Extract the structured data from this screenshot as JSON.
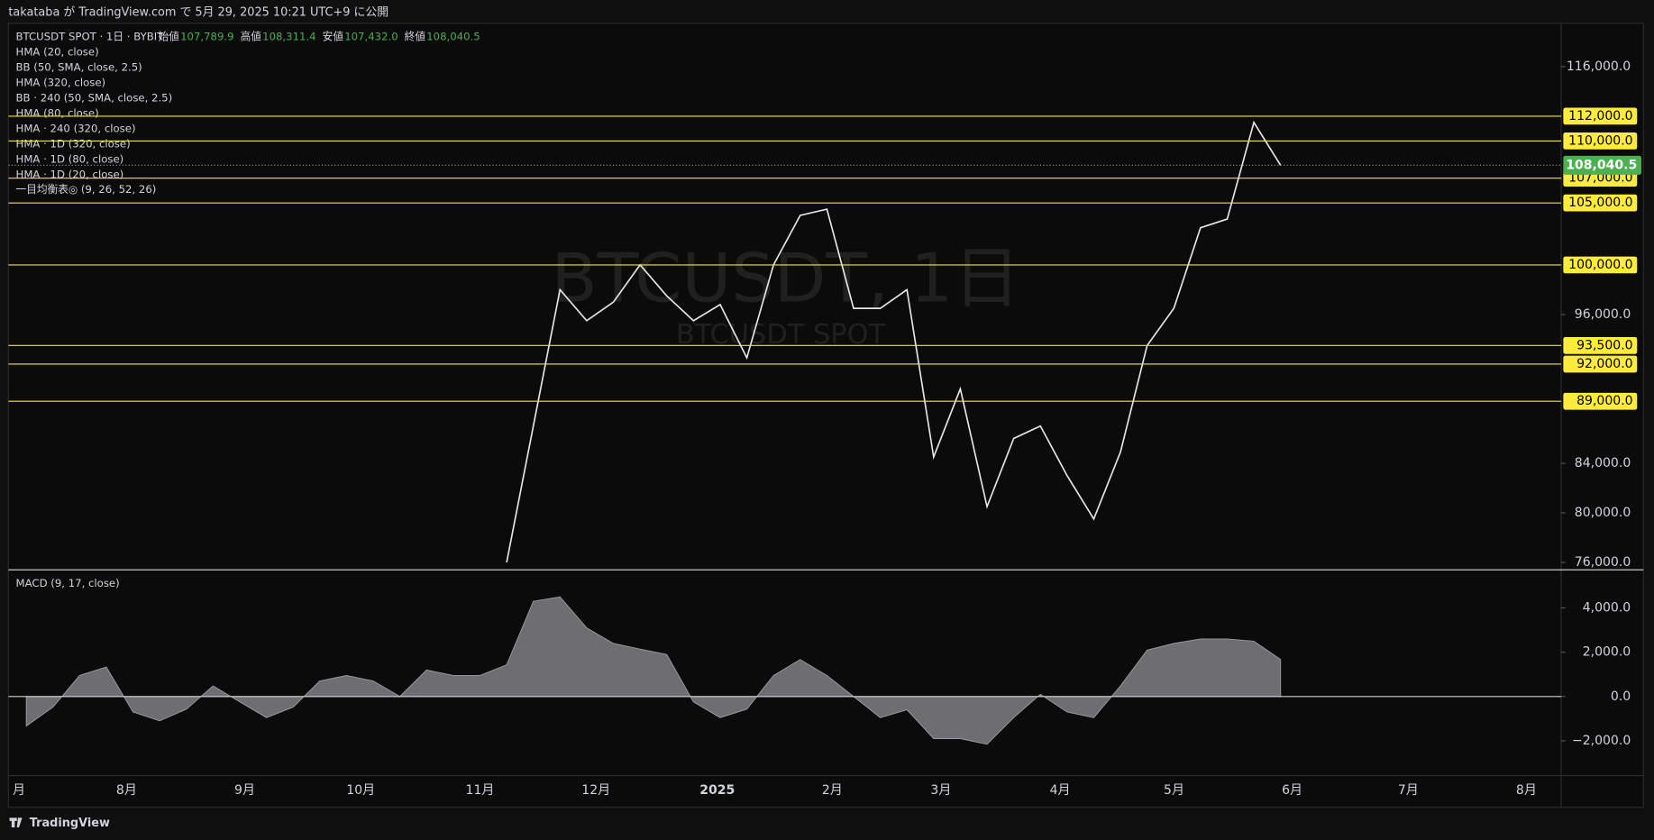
{
  "header": {
    "publish": "takataba が TradingView.com で 5月 29, 2025 10:21 UTC+9 に公開"
  },
  "legend": {
    "symbol": "BTCUSDT SPOT · 1日 · BYBIT",
    "ohlc": [
      {
        "label": "始値",
        "value": "107,789.9"
      },
      {
        "label": "高値",
        "value": "108,311.4"
      },
      {
        "label": "安値",
        "value": "107,432.0"
      },
      {
        "label": "終値",
        "value": "108,040.5"
      }
    ],
    "indicators": [
      "HMA (20, close)",
      "BB (50, SMA, close, 2.5)",
      "HMA (320, close)",
      "BB · 240 (50, SMA, close, 2.5)",
      "HMA (80, close)",
      "HMA · 240 (320, close)",
      "HMA · 1D (320, close)",
      "HMA · 1D (80, close)",
      "HMA · 1D (20, close)",
      "一目均衡表◎ (9, 26, 52, 26)"
    ]
  },
  "watermark": {
    "symbol": "BTCUSDT, 1日",
    "sub": "BTCUSDT SPOT"
  },
  "price": {
    "ylim": [
      75400,
      119500
    ],
    "yticks": [
      {
        "value": 116000,
        "label": "116,000.0"
      },
      {
        "value": 96000,
        "label": "96,000.0"
      },
      {
        "value": 84000,
        "label": "84,000.0"
      },
      {
        "value": 80000,
        "label": "80,000.0"
      },
      {
        "value": 76000,
        "label": "76,000.0"
      }
    ],
    "levels": [
      {
        "value": 112000,
        "label": "112,000.0"
      },
      {
        "value": 110000,
        "label": "110,000.0"
      },
      {
        "value": 107000,
        "label": "107,000.0"
      },
      {
        "value": 105000,
        "label": "105,000.0"
      },
      {
        "value": 100000,
        "label": "100,000.0"
      },
      {
        "value": 93500,
        "label": "93,500.0"
      },
      {
        "value": 92000,
        "label": "92,000.0"
      },
      {
        "value": 89000,
        "label": "89,000.0"
      }
    ],
    "last_price": {
      "value": 108040.5,
      "label": "108,040.5"
    },
    "close": [
      76000,
      87000,
      98000,
      95500,
      97000,
      100000,
      97500,
      95500,
      96800,
      92500,
      100000,
      104000,
      104500,
      96500,
      96500,
      98000,
      84500,
      90000,
      80500,
      86000,
      87000,
      83000,
      79500,
      84900,
      93500,
      96500,
      103000,
      103700,
      111500,
      108040.5
    ]
  },
  "macd": {
    "title": "MACD (9, 17, close)",
    "ylim": [
      -3570,
      5670
    ],
    "yticks": [
      {
        "value": 4000,
        "label": "4,000.0"
      },
      {
        "value": 2000,
        "label": "2,000.0"
      },
      {
        "value": 0,
        "label": "0.0"
      },
      {
        "value": -2000,
        "label": "−2,000.0"
      }
    ],
    "values": [
      -1330,
      -480,
      950,
      1330,
      -700,
      -1100,
      -570,
      480,
      -240,
      -950,
      -480,
      700,
      950,
      700,
      0,
      1200,
      950,
      950,
      1430,
      4300,
      4500,
      3100,
      2400,
      2140,
      1900,
      -240,
      -950,
      -570,
      950,
      1670,
      950,
      0,
      -950,
      -600,
      -1900,
      -1900,
      -2150,
      -950,
      100,
      -700,
      -950,
      480,
      2100,
      2400,
      2600,
      2600,
      2500,
      1670
    ]
  },
  "time_axis": {
    "labels": [
      "月",
      "8月",
      "9月",
      "10月",
      "11月",
      "12月",
      "2025",
      "2月",
      "3月",
      "4月",
      "5月",
      "6月",
      "7月",
      "8月"
    ]
  },
  "footer": {
    "brand": "TradingView"
  }
}
